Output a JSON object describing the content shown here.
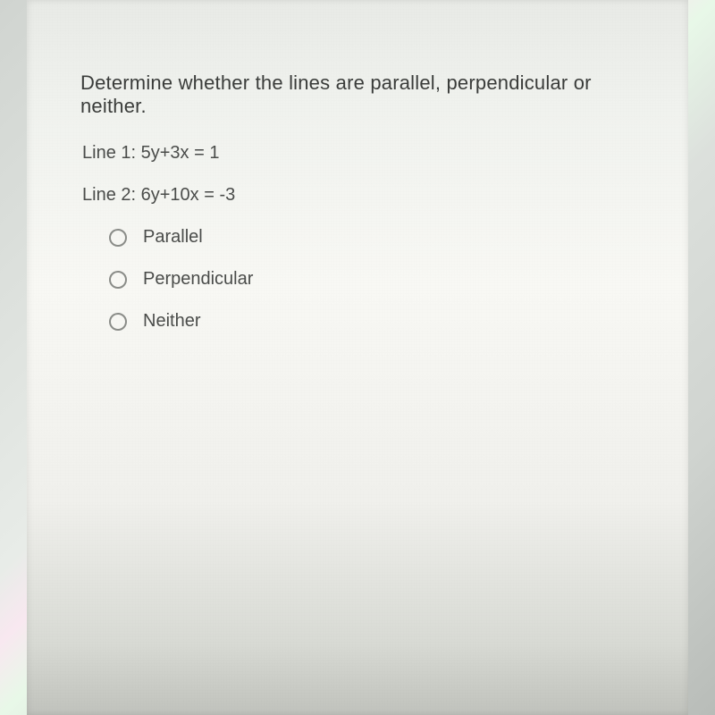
{
  "question": "Determine whether the lines are parallel, perpendicular or neither.",
  "lines": {
    "line1": "Line 1: 5y+3x = 1",
    "line2": "Line 2: 6y+10x = -3"
  },
  "options": [
    {
      "label": "Parallel"
    },
    {
      "label": "Perpendicular"
    },
    {
      "label": "Neither"
    }
  ],
  "colors": {
    "text_primary": "#3a3c3a",
    "text_secondary": "#4a4c4a",
    "radio_border": "#8a8c88",
    "page_bg": "#f0f2ee",
    "top_bar": "#4a4c48"
  },
  "typography": {
    "question_fontsize": 22,
    "line_fontsize": 20,
    "option_fontsize": 20,
    "font_family": "Arial"
  }
}
